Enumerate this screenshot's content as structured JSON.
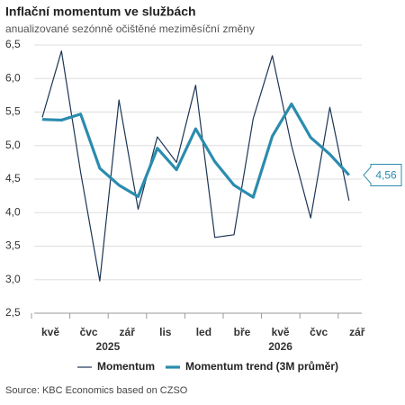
{
  "chart_data": {
    "type": "line",
    "title": "Inflační momentum ve službách",
    "subtitle": "anualizované sezónně očištěné meziměsíční změny",
    "categories": [
      "kvě",
      null,
      "čvc",
      null,
      "zář",
      null,
      "lis",
      null,
      "led",
      null,
      "bře",
      null,
      "kvě",
      null,
      "čvc",
      null,
      "zář"
    ],
    "category_groups": [
      null,
      null,
      null,
      "2025",
      null,
      null,
      null,
      null,
      null,
      null,
      null,
      null,
      "2026",
      null,
      null,
      null,
      null
    ],
    "series": [
      {
        "name": "Momentum",
        "color": "#1c3554",
        "values": [
          5.42,
          6.41,
          4.6,
          2.98,
          5.68,
          4.05,
          5.13,
          4.75,
          5.9,
          3.63,
          3.67,
          5.4,
          6.34,
          5.0,
          3.92,
          5.57,
          4.18
        ]
      },
      {
        "name": "Momentum trend (3M průměr)",
        "color": "#2a8cae",
        "values": [
          5.39,
          5.38,
          5.47,
          4.66,
          4.41,
          4.24,
          4.96,
          4.64,
          5.25,
          4.76,
          4.41,
          4.23,
          5.14,
          5.62,
          5.12,
          4.87,
          4.56
        ]
      }
    ],
    "annotation": {
      "value": 4.56,
      "label": "4,56"
    },
    "ylim": [
      2.5,
      6.5
    ],
    "yticks": [
      {
        "value": 2.5,
        "label": "2,5"
      },
      {
        "value": 3,
        "label": "3,0"
      },
      {
        "value": 3.5,
        "label": "3,5"
      },
      {
        "value": 4,
        "label": "4,0"
      },
      {
        "value": 4.5,
        "label": "4,5"
      },
      {
        "value": 5,
        "label": "5,0"
      },
      {
        "value": 5.5,
        "label": "5,5"
      },
      {
        "value": 6,
        "label": "6,0"
      },
      {
        "value": 6.5,
        "label": "6,5"
      }
    ],
    "grid": true,
    "source": "Source: KBC Economics based on CZSO"
  }
}
